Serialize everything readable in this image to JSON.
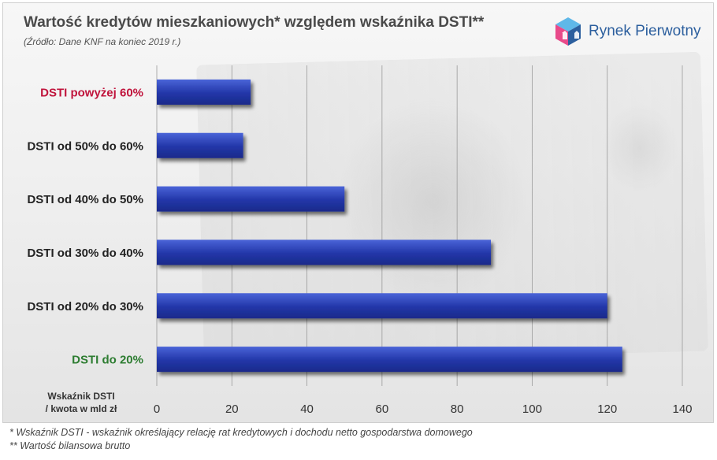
{
  "header": {
    "title": "Wartość kredytów mieszkaniowych* względem wskaźnika DSTI**",
    "subtitle": "(Źródło: Dane KNF na  koniec 2019 r.)"
  },
  "brand": {
    "name": "Rynek Pierwotny",
    "logo_icon": "house-cube-logo-icon",
    "color": "#2c5f9e"
  },
  "chart_data": {
    "type": "bar",
    "orientation": "horizontal",
    "categories": [
      "DSTI powyżej 60%",
      "DSTI od 50% do 60%",
      "DSTI od 40% do 50%",
      "DSTI od 30% do 40%",
      "DSTI od 20% do 30%",
      "DSTI do 20%"
    ],
    "category_colors": [
      "#c0143c",
      "#222222",
      "#222222",
      "#222222",
      "#222222",
      "#2e7d32"
    ],
    "values": [
      25,
      23,
      50,
      89,
      120,
      124
    ],
    "xlim": [
      0,
      140
    ],
    "xticks": [
      0,
      20,
      40,
      60,
      80,
      100,
      120,
      140
    ],
    "axis_label_lines": [
      "Wskaźnik DSTI",
      "/ kwota w mld zł"
    ],
    "grid": true,
    "bar_color": "#2a40b0"
  },
  "footnotes": [
    "* Wskaźnik DSTI - wskaźnik określający relację rat kredytowych i dochodu netto gospodarstwa domowego",
    "** Wartość bilansowa brutto"
  ]
}
